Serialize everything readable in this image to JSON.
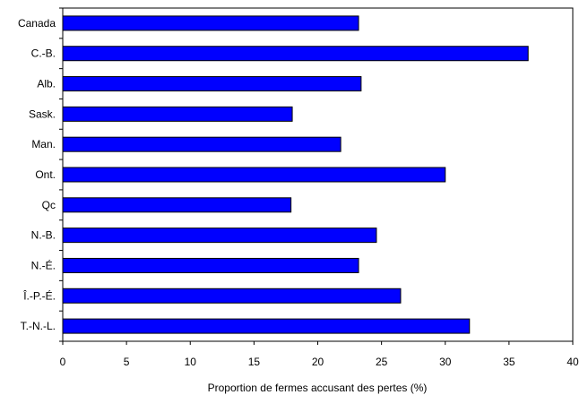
{
  "chart_data": {
    "type": "bar",
    "orientation": "horizontal",
    "categories": [
      "Canada",
      "C.-B.",
      "Alb.",
      "Sask.",
      "Man.",
      "Ont.",
      "Qc",
      "N.-B.",
      "N.-É.",
      "Î.-P.-É.",
      "T.-N.-L."
    ],
    "values": [
      23.2,
      36.5,
      23.4,
      18.0,
      21.8,
      30.0,
      17.9,
      24.6,
      23.2,
      26.5,
      31.9
    ],
    "xlabel": "Proportion de fermes accusant des pertes (%)",
    "ylabel": "",
    "xlim": [
      0,
      40
    ],
    "xticks": [
      "0",
      "5",
      "10",
      "15",
      "20",
      "25",
      "30",
      "35",
      "40"
    ],
    "grid": false,
    "bar_color": "#0000ff",
    "bar_edge_color": "#000000"
  }
}
